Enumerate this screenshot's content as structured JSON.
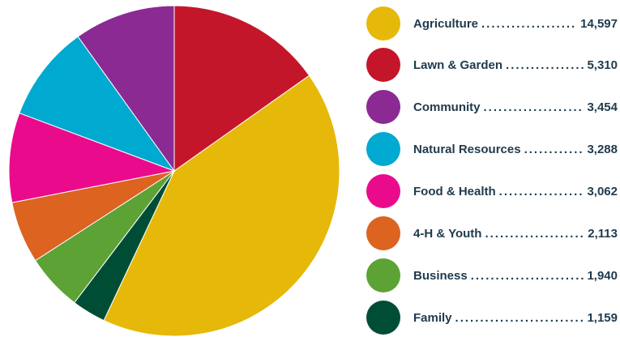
{
  "chart_data": {
    "type": "pie",
    "title": "",
    "categories": [
      "Agriculture",
      "Lawn & Garden",
      "Community",
      "Natural Resources",
      "Food & Health",
      "4-H & Youth",
      "Business",
      "Family"
    ],
    "values": [
      14597,
      5310,
      3454,
      3288,
      3062,
      2113,
      1940,
      1159
    ],
    "value_labels": [
      "14,597",
      "5,310",
      "3,454",
      "3,288",
      "3,062",
      "2,113",
      "1,940",
      "1,159"
    ],
    "colors": [
      "#e6b80a",
      "#c4162a",
      "#8b2a92",
      "#00a9d0",
      "#ea0b8c",
      "#dc6320",
      "#5da235",
      "#004d36"
    ],
    "legend_position": "right",
    "slice_order": [
      "Lawn & Garden",
      "Agriculture",
      "Family",
      "Business",
      "4-H & Youth",
      "Food & Health",
      "Natural Resources",
      "Community"
    ]
  }
}
